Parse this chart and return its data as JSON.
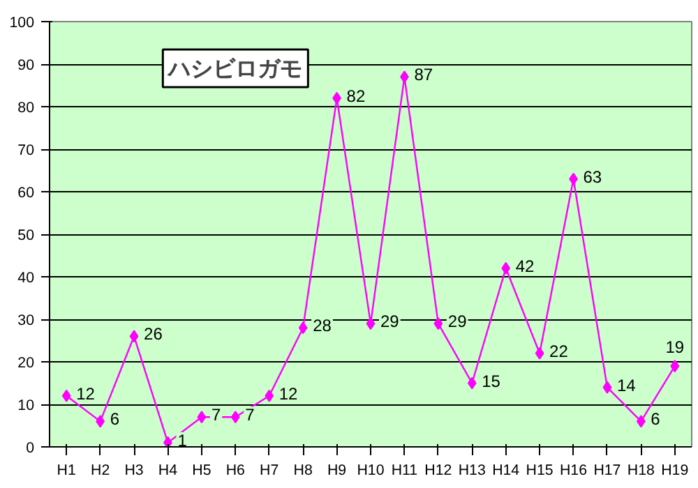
{
  "chart_data": {
    "type": "line",
    "title": "ハシビロガモ",
    "categories": [
      "H1",
      "H2",
      "H3",
      "H4",
      "H5",
      "H6",
      "H7",
      "H8",
      "H9",
      "H10",
      "H11",
      "H12",
      "H13",
      "H14",
      "H15",
      "H16",
      "H17",
      "H18",
      "H19"
    ],
    "series": [
      {
        "color": "#ff00ff",
        "values": [
          12,
          6,
          26,
          1,
          7,
          7,
          12,
          28,
          82,
          29,
          87,
          29,
          15,
          42,
          22,
          63,
          14,
          6,
          19
        ]
      }
    ],
    "ylim": [
      0,
      100
    ],
    "yticks": [
      0,
      10,
      20,
      30,
      40,
      50,
      60,
      70,
      80,
      90,
      100
    ],
    "grid": "y",
    "marker": "diamond",
    "line_style": "solid",
    "data_labels": true
  }
}
